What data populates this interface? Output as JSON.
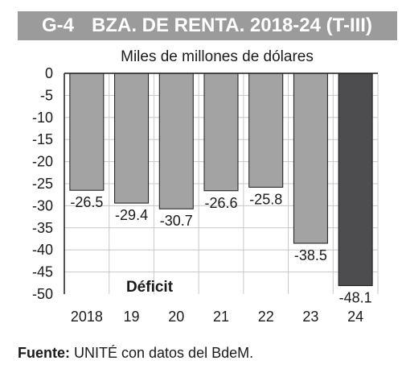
{
  "header": {
    "code": "G-4",
    "title": "BZA. DE RENTA. 2018-24 (T-III)"
  },
  "chart_data": {
    "type": "bar",
    "title": "G-4 BZA. DE RENTA. 2018-24 (T-III)",
    "ylabel": "Miles de millones de dólares",
    "xlabel": "",
    "categories": [
      "2018",
      "19",
      "20",
      "21",
      "22",
      "23",
      "24"
    ],
    "values": [
      -26.5,
      -29.4,
      -30.7,
      -26.6,
      -25.8,
      -38.5,
      -48.1
    ],
    "value_labels": [
      "-26.5",
      "-29.4",
      "-30.7",
      "-26.6",
      "-25.8",
      "-38.5",
      "-48.1"
    ],
    "ylim": [
      -50,
      0
    ],
    "yticks": [
      0,
      -5,
      -10,
      -15,
      -20,
      -25,
      -30,
      -35,
      -40,
      -45,
      -50
    ],
    "ytick_labels": [
      "0",
      "-5",
      "-10",
      "-15",
      "-20",
      "-25",
      "-30",
      "-35",
      "-40",
      "-45",
      "-50"
    ],
    "annotation": "Déficit",
    "colors": {
      "bar": "#a3a3a3",
      "highlight_bar": "#4d4d4f",
      "highlight_index": 6
    },
    "grid": true,
    "legend": "none"
  },
  "footer": {
    "label": "Fuente:",
    "text": " UNITÉ con datos del BdeM."
  }
}
